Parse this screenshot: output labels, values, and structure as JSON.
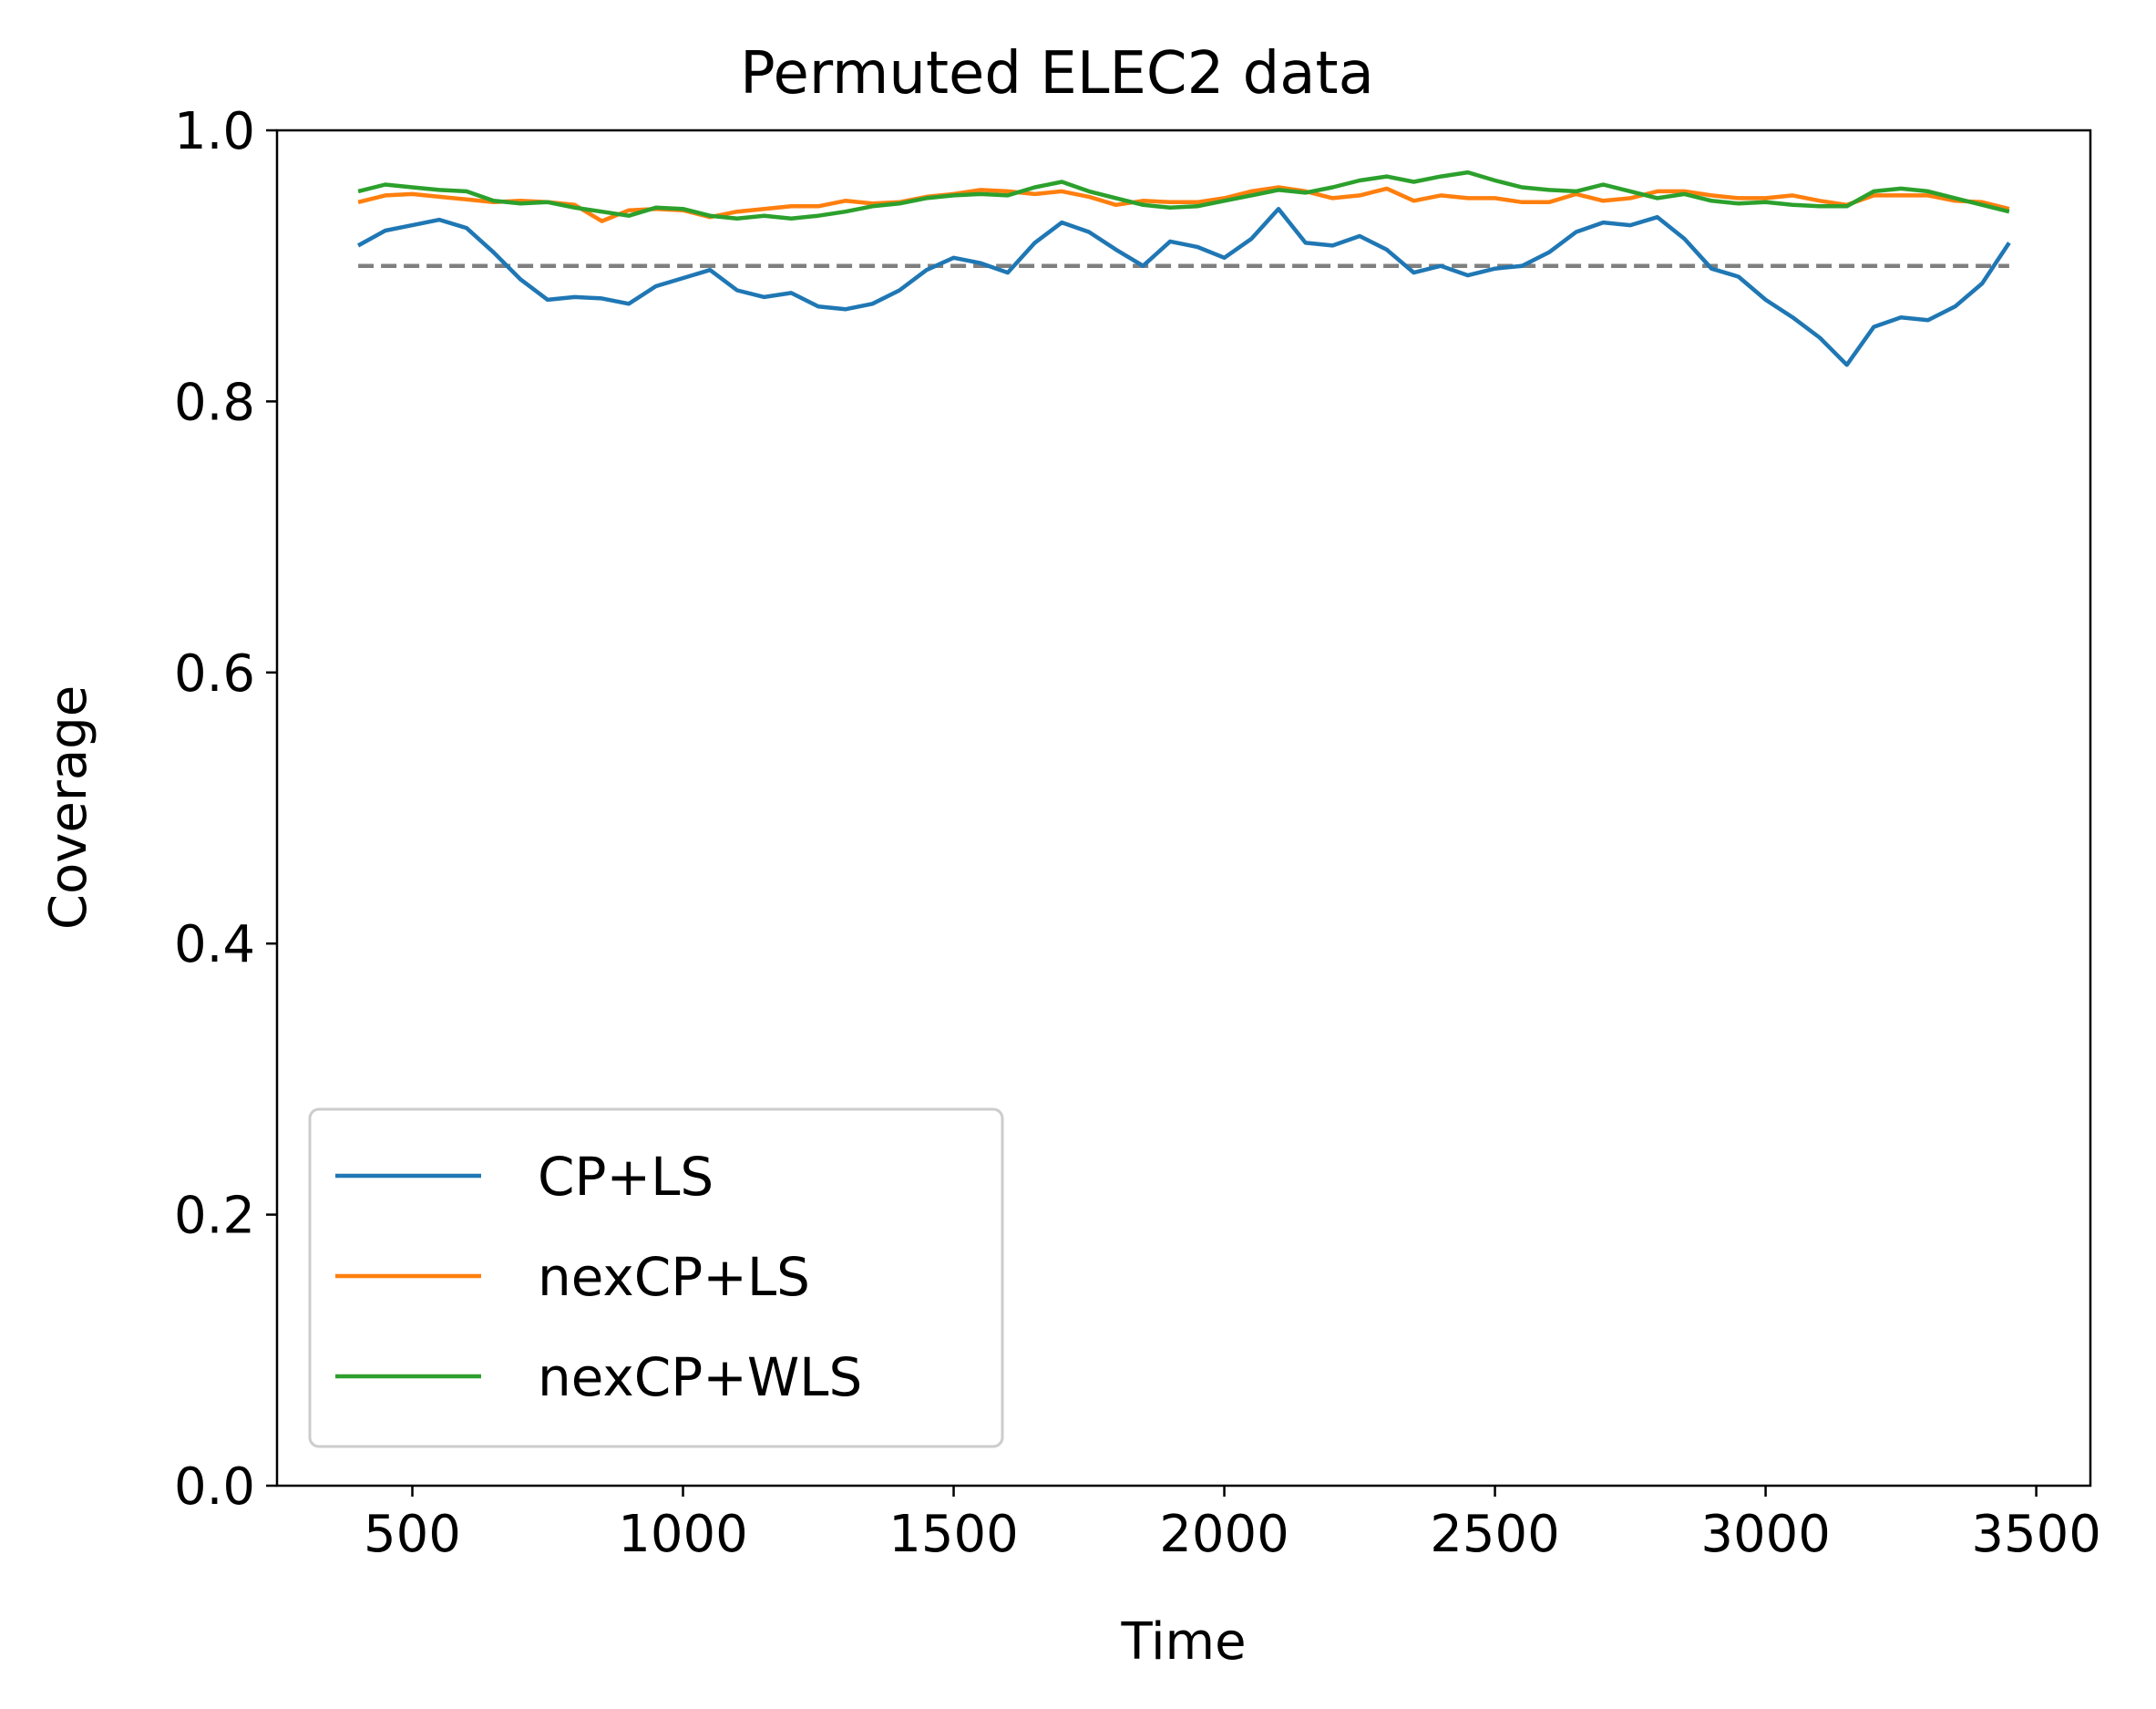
{
  "chart_data": {
    "type": "line",
    "title": "Permuted ELEC2 data",
    "xlabel": "Time",
    "ylabel": "Coverage",
    "xlim": [
      250,
      3600
    ],
    "ylim": [
      0.0,
      1.0
    ],
    "xticks": [
      500,
      1000,
      1500,
      2000,
      2500,
      3000,
      3500
    ],
    "xtick_labels": [
      "500",
      "1000",
      "1500",
      "2000",
      "2500",
      "3000",
      "3500"
    ],
    "yticks": [
      0.0,
      0.2,
      0.4,
      0.6,
      0.8,
      1.0
    ],
    "ytick_labels": [
      "0.0",
      "0.2",
      "0.4",
      "0.6",
      "0.8",
      "1.0"
    ],
    "grid": false,
    "legend_position": "lower-left",
    "reference_line": {
      "y": 0.9,
      "x_range": [
        400,
        3450
      ],
      "color": "#7f7f7f",
      "style": "dashed"
    },
    "series": [
      {
        "name": "CP+LS",
        "color": "#1f77b4",
        "x": [
          400,
          450,
          500,
          550,
          600,
          650,
          700,
          750,
          800,
          850,
          900,
          950,
          1000,
          1050,
          1100,
          1150,
          1200,
          1250,
          1300,
          1350,
          1400,
          1450,
          1500,
          1550,
          1600,
          1650,
          1700,
          1750,
          1800,
          1850,
          1900,
          1950,
          2000,
          2050,
          2100,
          2150,
          2200,
          2250,
          2300,
          2350,
          2400,
          2450,
          2500,
          2550,
          2600,
          2650,
          2700,
          2750,
          2800,
          2850,
          2900,
          2950,
          3000,
          3050,
          3100,
          3150,
          3200,
          3250,
          3300,
          3350,
          3400,
          3450
        ],
        "y": [
          0.915,
          0.926,
          0.93,
          0.934,
          0.928,
          0.91,
          0.89,
          0.875,
          0.877,
          0.876,
          0.872,
          0.885,
          0.891,
          0.897,
          0.882,
          0.877,
          0.88,
          0.87,
          0.868,
          0.872,
          0.882,
          0.897,
          0.906,
          0.902,
          0.895,
          0.917,
          0.932,
          0.925,
          0.912,
          0.9,
          0.918,
          0.914,
          0.906,
          0.92,
          0.942,
          0.917,
          0.915,
          0.922,
          0.912,
          0.895,
          0.9,
          0.893,
          0.898,
          0.9,
          0.91,
          0.925,
          0.932,
          0.93,
          0.936,
          0.92,
          0.898,
          0.892,
          0.875,
          0.862,
          0.847,
          0.827,
          0.855,
          0.862,
          0.86,
          0.87,
          0.887,
          0.917
        ]
      },
      {
        "name": "nexCP+LS",
        "color": "#ff7f0e",
        "x": [
          400,
          450,
          500,
          550,
          600,
          650,
          700,
          750,
          800,
          850,
          900,
          950,
          1000,
          1050,
          1100,
          1150,
          1200,
          1250,
          1300,
          1350,
          1400,
          1450,
          1500,
          1550,
          1600,
          1650,
          1700,
          1750,
          1800,
          1850,
          1900,
          1950,
          2000,
          2050,
          2100,
          2150,
          2200,
          2250,
          2300,
          2350,
          2400,
          2450,
          2500,
          2550,
          2600,
          2650,
          2700,
          2750,
          2800,
          2850,
          2900,
          2950,
          3000,
          3050,
          3100,
          3150,
          3200,
          3250,
          3300,
          3350,
          3400,
          3450
        ],
        "y": [
          0.947,
          0.952,
          0.953,
          0.951,
          0.949,
          0.947,
          0.948,
          0.947,
          0.945,
          0.933,
          0.941,
          0.942,
          0.941,
          0.936,
          0.94,
          0.942,
          0.944,
          0.944,
          0.948,
          0.946,
          0.947,
          0.951,
          0.953,
          0.956,
          0.955,
          0.953,
          0.955,
          0.951,
          0.945,
          0.948,
          0.947,
          0.947,
          0.95,
          0.955,
          0.958,
          0.955,
          0.95,
          0.952,
          0.957,
          0.948,
          0.952,
          0.95,
          0.95,
          0.947,
          0.947,
          0.953,
          0.948,
          0.95,
          0.955,
          0.955,
          0.952,
          0.95,
          0.95,
          0.952,
          0.948,
          0.945,
          0.952,
          0.952,
          0.952,
          0.948,
          0.947,
          0.942
        ]
      },
      {
        "name": "nexCP+WLS",
        "color": "#2ca02c",
        "x": [
          400,
          450,
          500,
          550,
          600,
          650,
          700,
          750,
          800,
          850,
          900,
          950,
          1000,
          1050,
          1100,
          1150,
          1200,
          1250,
          1300,
          1350,
          1400,
          1450,
          1500,
          1550,
          1600,
          1650,
          1700,
          1750,
          1800,
          1850,
          1900,
          1950,
          2000,
          2050,
          2100,
          2150,
          2200,
          2250,
          2300,
          2350,
          2400,
          2450,
          2500,
          2550,
          2600,
          2650,
          2700,
          2750,
          2800,
          2850,
          2900,
          2950,
          3000,
          3050,
          3100,
          3150,
          3200,
          3250,
          3300,
          3350,
          3400,
          3450
        ],
        "y": [
          0.955,
          0.96,
          0.958,
          0.956,
          0.955,
          0.948,
          0.946,
          0.947,
          0.943,
          0.94,
          0.937,
          0.943,
          0.942,
          0.937,
          0.935,
          0.937,
          0.935,
          0.937,
          0.94,
          0.944,
          0.946,
          0.95,
          0.952,
          0.953,
          0.952,
          0.958,
          0.962,
          0.955,
          0.95,
          0.945,
          0.943,
          0.944,
          0.948,
          0.952,
          0.956,
          0.954,
          0.958,
          0.963,
          0.966,
          0.962,
          0.966,
          0.969,
          0.963,
          0.958,
          0.956,
          0.955,
          0.96,
          0.955,
          0.95,
          0.953,
          0.948,
          0.946,
          0.947,
          0.945,
          0.944,
          0.944,
          0.955,
          0.957,
          0.955,
          0.95,
          0.945,
          0.94
        ]
      }
    ]
  }
}
